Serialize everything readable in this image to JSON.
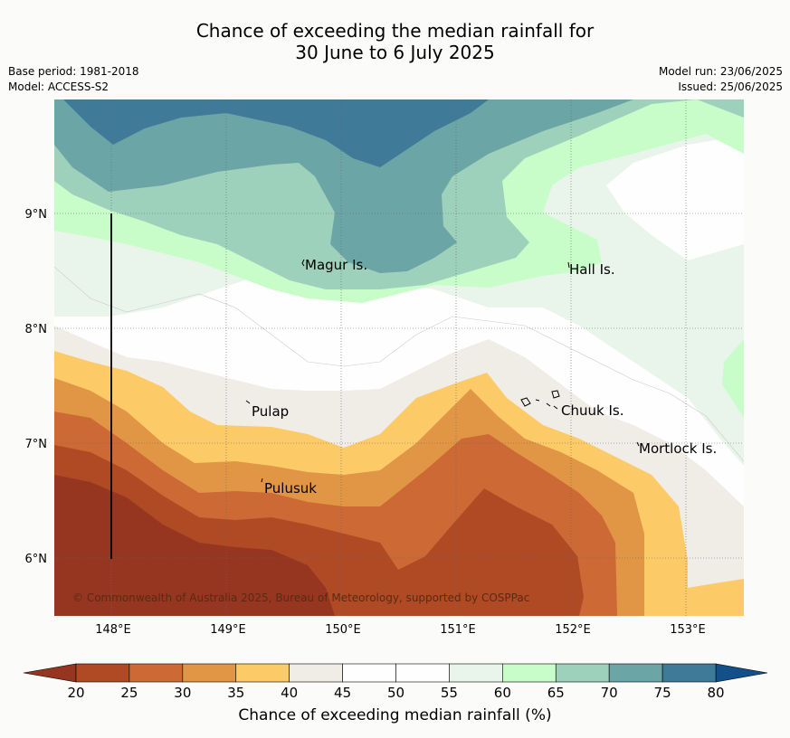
{
  "title": {
    "line1": "Chance of exceeding the median rainfall for",
    "line2": "30 June to 6 July 2025"
  },
  "meta": {
    "base_period": "Base period: 1981-2018",
    "model": "Model: ACCESS-S2",
    "model_run": "Model run: 23/06/2025",
    "issued": "Issued: 25/06/2025"
  },
  "map": {
    "lon_range": [
      147.5,
      153.5
    ],
    "lat_range": [
      5.5,
      10.0
    ],
    "lon_ticks": [
      "148°E",
      "149°E",
      "150°E",
      "151°E",
      "152°E",
      "153°E"
    ],
    "lat_ticks": [
      "6°N",
      "7°N",
      "8°N",
      "9°N"
    ],
    "places": [
      {
        "name": "Magur Is.",
        "lon": 149.65,
        "lat": 8.55
      },
      {
        "name": "Hall Is.",
        "lon": 151.97,
        "lat": 8.52
      },
      {
        "name": "Pulap",
        "lon": 149.22,
        "lat": 7.3
      },
      {
        "name": "Chuuk Is.",
        "lon": 151.78,
        "lat": 7.4
      },
      {
        "name": "Pulusuk",
        "lon": 149.33,
        "lat": 6.63
      },
      {
        "name": "Mortlock Is.",
        "lon": 152.62,
        "lat": 6.98
      }
    ],
    "copyright": "© Commonwealth of Australia 2025, Bureau of Meteorology, supported by COSPPac"
  },
  "colorbar": {
    "label": "Chance of exceeding median rainfall (%)",
    "ticks": [
      "20",
      "25",
      "30",
      "35",
      "40",
      "45",
      "50",
      "55",
      "60",
      "65",
      "70",
      "75",
      "80"
    ],
    "colors": [
      "#b04a24",
      "#cd6934",
      "#e19646",
      "#fdca68",
      "#f0ece6",
      "#fdfefd",
      "#fdfefd",
      "#e9f5ea",
      "#c8fcc9",
      "#9dd1bb",
      "#6ca5a6",
      "#3f7a99"
    ],
    "under_color": "#963620",
    "over_color": "#13508a"
  }
}
